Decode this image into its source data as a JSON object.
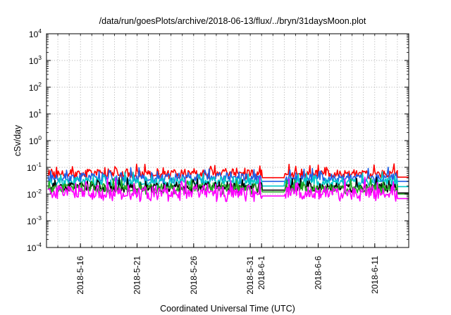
{
  "chart_data": {
    "type": "line",
    "title": "/data/run/goesPlots/archive/2018-06-13/flux/../bryn/31daysMoon.plot",
    "xlabel": "Coordinated Universal Time (UTC)",
    "ylabel": "cSv/day",
    "yscale": "log",
    "ylim": [
      0.0001,
      10000
    ],
    "xlim": [
      "2018-05-13",
      "2018-06-14"
    ],
    "grid": true,
    "legend": "none",
    "y_ticks": [
      {
        "base": "10",
        "exp": "-4",
        "value": 0.0001
      },
      {
        "base": "10",
        "exp": "-3",
        "value": 0.001
      },
      {
        "base": "10",
        "exp": "-2",
        "value": 0.01
      },
      {
        "base": "10",
        "exp": "-1",
        "value": 0.1
      },
      {
        "base": "10",
        "exp": "0",
        "value": 1
      },
      {
        "base": "10",
        "exp": "1",
        "value": 10
      },
      {
        "base": "10",
        "exp": "2",
        "value": 100
      },
      {
        "base": "10",
        "exp": "3",
        "value": 1000
      },
      {
        "base": "10",
        "exp": "4",
        "value": 10000
      }
    ],
    "x_ticks": [
      {
        "label": "2018-5-16",
        "date": "2018-05-16"
      },
      {
        "label": "2018-5-21",
        "date": "2018-05-21"
      },
      {
        "label": "2018-5-26",
        "date": "2018-05-26"
      },
      {
        "label": "2018-5-31",
        "date": "2018-05-31"
      },
      {
        "label": "2018-6-1",
        "date": "2018-06-01"
      },
      {
        "label": "2018-6-6",
        "date": "2018-06-06"
      },
      {
        "label": "2018-6-11",
        "date": "2018-06-11"
      }
    ],
    "gap": [
      "2018-06-01",
      "2018-06-03"
    ],
    "series": [
      {
        "color": "#ff0000",
        "base": 0.058,
        "amp": 0.3,
        "gap_level": 0.041,
        "end_level": 0.043
      },
      {
        "color": "#1e5fe6",
        "base": 0.04,
        "amp": 0.32,
        "gap_level": 0.03,
        "end_level": 0.03
      },
      {
        "color": "#00c8c8",
        "base": 0.028,
        "amp": 0.3,
        "gap_level": 0.02,
        "end_level": 0.019
      },
      {
        "color": "#000000",
        "base": 0.018,
        "amp": 0.28,
        "gap_level": 0.014,
        "end_level": 0.011
      },
      {
        "color": "#22aa22",
        "base": 0.016,
        "amp": 0.28,
        "gap_level": 0.012,
        "end_level": 0.01
      },
      {
        "color": "#ff00ff",
        "base": 0.011,
        "amp": 0.42,
        "gap_level": 0.0085,
        "end_level": 0.0068
      }
    ]
  }
}
